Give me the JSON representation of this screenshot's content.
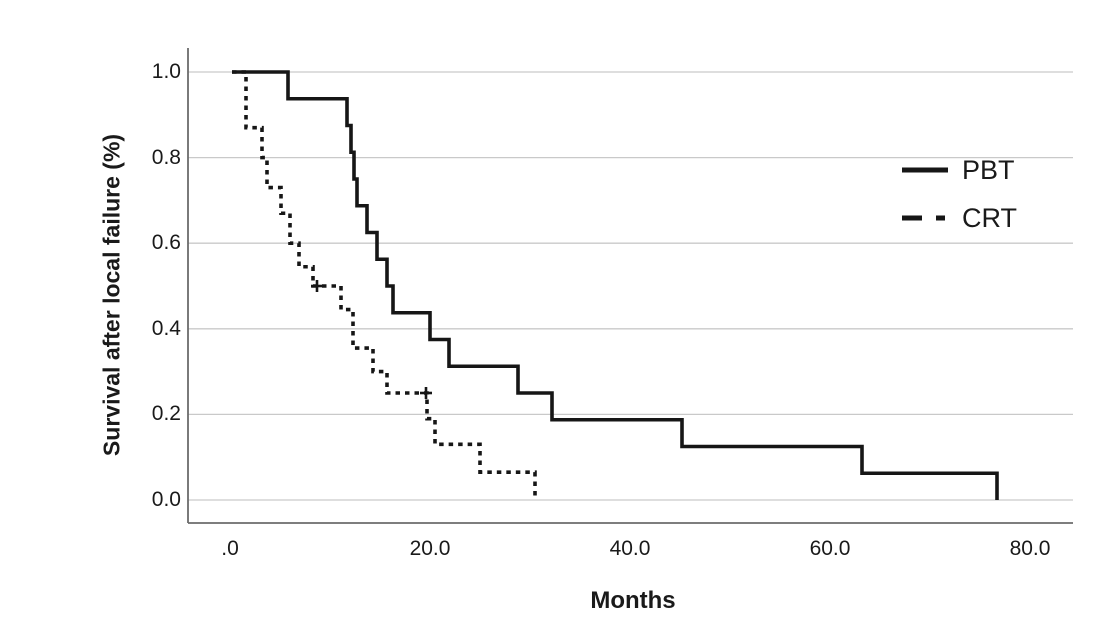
{
  "figure": {
    "background_color": "#ffffff",
    "kind": "kaplan-meier-survival-plot"
  },
  "chart_data": {
    "type": "line",
    "subtype": "step-survival",
    "title": "",
    "xlabel": "Months",
    "ylabel": "Survival after local failure (%)",
    "xlim": [
      -4.2,
      84.3
    ],
    "ylim": [
      -0.054,
      1.056
    ],
    "grid": true,
    "legend_position": "right",
    "x_ticks": [
      {
        "label": ".0",
        "value": 0
      },
      {
        "label": "20.0",
        "value": 20
      },
      {
        "label": "40.0",
        "value": 40
      },
      {
        "label": "60.0",
        "value": 60
      },
      {
        "label": "80.0",
        "value": 80
      }
    ],
    "y_ticks": [
      {
        "label": "0.0",
        "value": 0.0
      },
      {
        "label": "0.2",
        "value": 0.2
      },
      {
        "label": "0.4",
        "value": 0.4
      },
      {
        "label": "0.6",
        "value": 0.6
      },
      {
        "label": "0.8",
        "value": 0.8
      },
      {
        "label": "1.0",
        "value": 1.0
      }
    ],
    "colors": {
      "curve": "#161616",
      "gridline": "#c9c9c9",
      "axis_line": "#6b6b6b",
      "text": "#1a1a1a"
    },
    "series": [
      {
        "name": "PBT",
        "style": "solid",
        "color": "#161616",
        "points": [
          [
            0.2,
            1.0
          ],
          [
            5.8,
            1.0
          ],
          [
            5.8,
            0.9375
          ],
          [
            11.7,
            0.9375
          ],
          [
            11.7,
            0.875
          ],
          [
            12.1,
            0.875
          ],
          [
            12.1,
            0.8125
          ],
          [
            12.4,
            0.8125
          ],
          [
            12.4,
            0.75
          ],
          [
            12.7,
            0.75
          ],
          [
            12.7,
            0.6875
          ],
          [
            13.7,
            0.6875
          ],
          [
            13.7,
            0.625
          ],
          [
            14.7,
            0.625
          ],
          [
            14.7,
            0.5625
          ],
          [
            15.7,
            0.5625
          ],
          [
            15.7,
            0.5
          ],
          [
            16.3,
            0.5
          ],
          [
            16.3,
            0.4375
          ],
          [
            20.0,
            0.4375
          ],
          [
            20.0,
            0.375
          ],
          [
            21.9,
            0.375
          ],
          [
            21.9,
            0.3125
          ],
          [
            28.8,
            0.3125
          ],
          [
            28.8,
            0.25
          ],
          [
            32.2,
            0.25
          ],
          [
            32.2,
            0.1875
          ],
          [
            45.2,
            0.1875
          ],
          [
            45.2,
            0.125
          ],
          [
            63.2,
            0.125
          ],
          [
            63.2,
            0.0625
          ],
          [
            76.7,
            0.0625
          ],
          [
            76.7,
            0.0
          ]
        ],
        "censor_marks": []
      },
      {
        "name": "CRT",
        "style": "dashed",
        "color": "#161616",
        "points": [
          [
            0.2,
            1.0
          ],
          [
            1.6,
            1.0
          ],
          [
            1.6,
            0.87
          ],
          [
            3.2,
            0.87
          ],
          [
            3.2,
            0.8
          ],
          [
            3.7,
            0.8
          ],
          [
            3.7,
            0.73
          ],
          [
            5.1,
            0.73
          ],
          [
            5.1,
            0.67
          ],
          [
            6.0,
            0.67
          ],
          [
            6.0,
            0.6
          ],
          [
            6.9,
            0.6
          ],
          [
            6.9,
            0.545
          ],
          [
            8.3,
            0.545
          ],
          [
            8.3,
            0.5
          ],
          [
            11.1,
            0.5
          ],
          [
            11.1,
            0.445
          ],
          [
            12.3,
            0.445
          ],
          [
            12.3,
            0.355
          ],
          [
            14.3,
            0.355
          ],
          [
            14.3,
            0.3
          ],
          [
            15.7,
            0.3
          ],
          [
            15.7,
            0.25
          ],
          [
            19.7,
            0.25
          ],
          [
            19.7,
            0.19
          ],
          [
            20.5,
            0.19
          ],
          [
            20.5,
            0.13
          ],
          [
            25.0,
            0.13
          ],
          [
            25.0,
            0.065
          ],
          [
            30.5,
            0.065
          ],
          [
            30.5,
            0.0
          ]
        ],
        "censor_marks": [
          [
            8.7,
            0.5
          ],
          [
            19.6,
            0.25
          ]
        ]
      }
    ]
  }
}
